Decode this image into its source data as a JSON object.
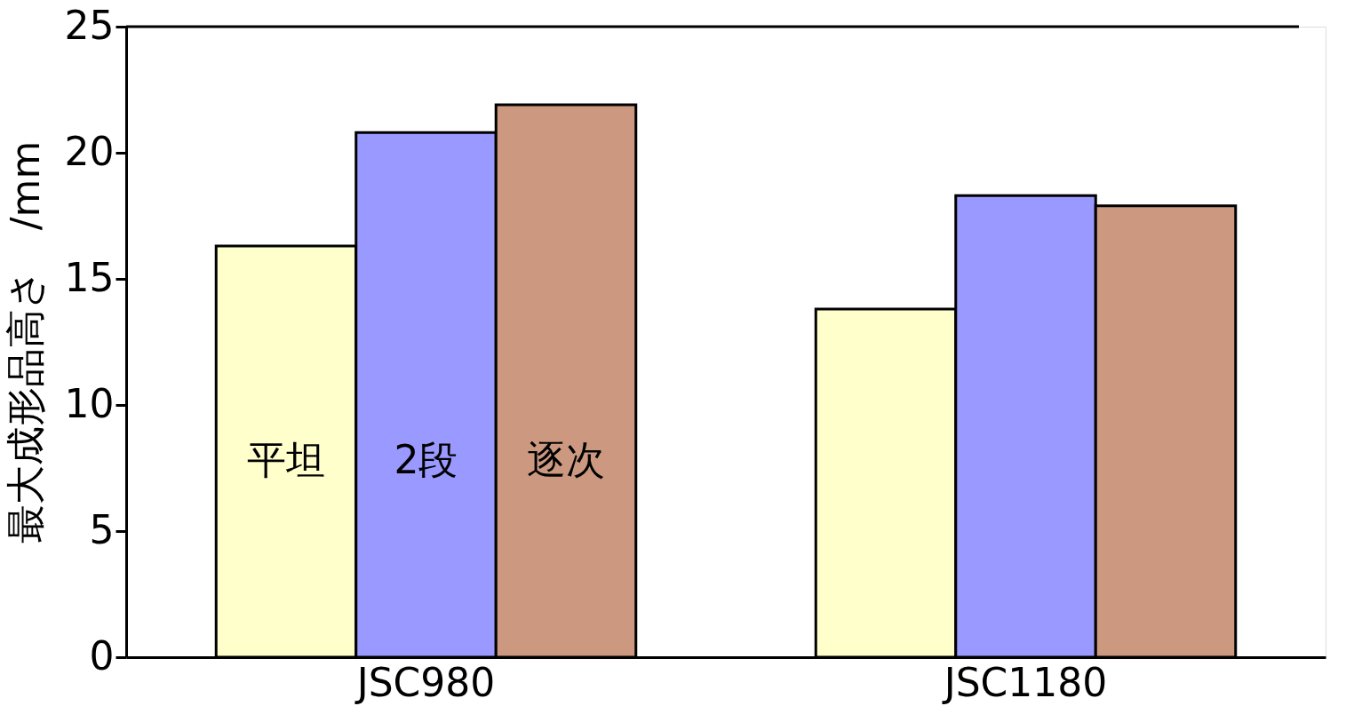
{
  "chart_data": {
    "type": "bar",
    "ylabel": "最大成形品高さ　/mm",
    "categories": [
      "JSC980",
      "JSC1180"
    ],
    "series": [
      {
        "name": "平坦",
        "color": "#ffffcc",
        "values": [
          16.3,
          13.8
        ]
      },
      {
        "name": "2段",
        "color": "#9999ff",
        "values": [
          20.8,
          18.3
        ]
      },
      {
        "name": "逐次",
        "color": "#cc9980",
        "values": [
          21.9,
          17.9
        ]
      }
    ],
    "ylim": [
      0,
      25
    ],
    "yticks": [
      0,
      5,
      10,
      15,
      20,
      25
    ],
    "grid": false,
    "legend": false
  }
}
